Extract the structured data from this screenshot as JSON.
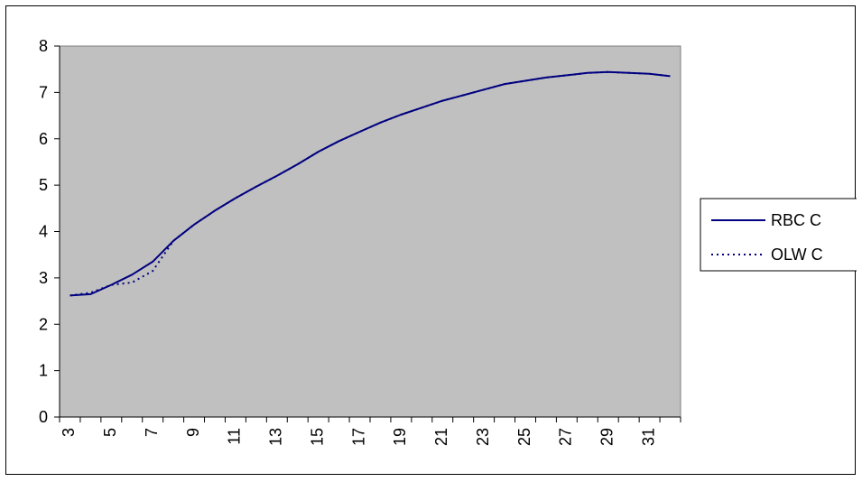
{
  "chart_data": {
    "type": "line",
    "title": "",
    "xlabel": "",
    "ylabel": "",
    "x": [
      3,
      4,
      5,
      6,
      7,
      8,
      9,
      10,
      11,
      12,
      13,
      14,
      15,
      16,
      17,
      18,
      19,
      20,
      21,
      22,
      23,
      24,
      25,
      26,
      27,
      28,
      29,
      30,
      31,
      32
    ],
    "x_tick_labels": [
      "3",
      "5",
      "7",
      "9",
      "11",
      "13",
      "15",
      "17",
      "19",
      "21",
      "23",
      "25",
      "27",
      "29",
      "31"
    ],
    "y_tick_labels": [
      "0",
      "1",
      "2",
      "3",
      "4",
      "5",
      "6",
      "7",
      "8"
    ],
    "ylim": [
      0,
      8
    ],
    "grid": false,
    "legend_position": "right",
    "plot_background": "#c0c0c0",
    "series": [
      {
        "name": "RBC C",
        "style": "solid",
        "color": "#000080",
        "values": [
          2.62,
          2.65,
          2.85,
          3.07,
          3.35,
          3.8,
          4.15,
          4.45,
          4.72,
          4.97,
          5.2,
          5.45,
          5.72,
          5.95,
          6.15,
          6.35,
          6.52,
          6.67,
          6.82,
          6.94,
          7.06,
          7.18,
          7.25,
          7.32,
          7.37,
          7.42,
          7.44,
          7.42,
          7.4,
          7.35
        ]
      },
      {
        "name": "OLW C",
        "style": "dotted",
        "color": "#000080",
        "values": [
          2.62,
          2.68,
          2.85,
          2.9,
          3.15,
          3.8,
          4.15,
          4.45,
          4.72,
          4.97,
          5.2,
          5.45,
          5.72,
          5.95,
          6.15,
          6.35,
          6.52,
          6.67,
          6.82,
          6.94,
          7.06,
          7.18,
          7.25,
          7.32,
          7.37,
          7.42,
          7.44,
          7.42,
          7.4,
          7.35
        ]
      }
    ]
  }
}
